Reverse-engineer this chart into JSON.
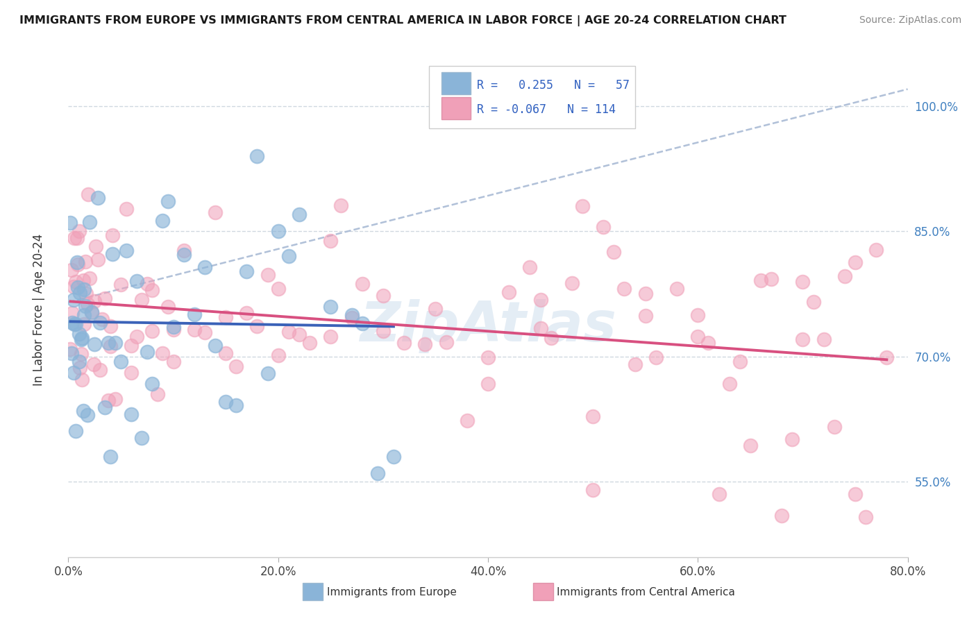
{
  "title": "IMMIGRANTS FROM EUROPE VS IMMIGRANTS FROM CENTRAL AMERICA IN LABOR FORCE | AGE 20-24 CORRELATION CHART",
  "source": "Source: ZipAtlas.com",
  "ylabel": "In Labor Force | Age 20-24",
  "xmin": 0.0,
  "xmax": 0.8,
  "ymin": 0.46,
  "ymax": 1.06,
  "yticks": [
    0.55,
    0.7,
    0.85,
    1.0
  ],
  "ytick_labels": [
    "55.0%",
    "70.0%",
    "85.0%",
    "100.0%"
  ],
  "xtick_labels": [
    "0.0%",
    "20.0%",
    "40.0%",
    "60.0%",
    "80.0%"
  ],
  "xticks": [
    0.0,
    0.2,
    0.4,
    0.6,
    0.8
  ],
  "legend_europe_label": "Immigrants from Europe",
  "legend_central_label": "Immigrants from Central America",
  "R_europe": 0.255,
  "N_europe": 57,
  "R_central": -0.067,
  "N_central": 114,
  "europe_color": "#8ab4d8",
  "central_color": "#f0a0b8",
  "europe_line_color": "#3a62b8",
  "central_line_color": "#d85080",
  "background_color": "#ffffff",
  "watermark_color": "#c5d8ea",
  "grid_color": "#d0d8e0",
  "dashed_line_color": "#b0c0d8"
}
